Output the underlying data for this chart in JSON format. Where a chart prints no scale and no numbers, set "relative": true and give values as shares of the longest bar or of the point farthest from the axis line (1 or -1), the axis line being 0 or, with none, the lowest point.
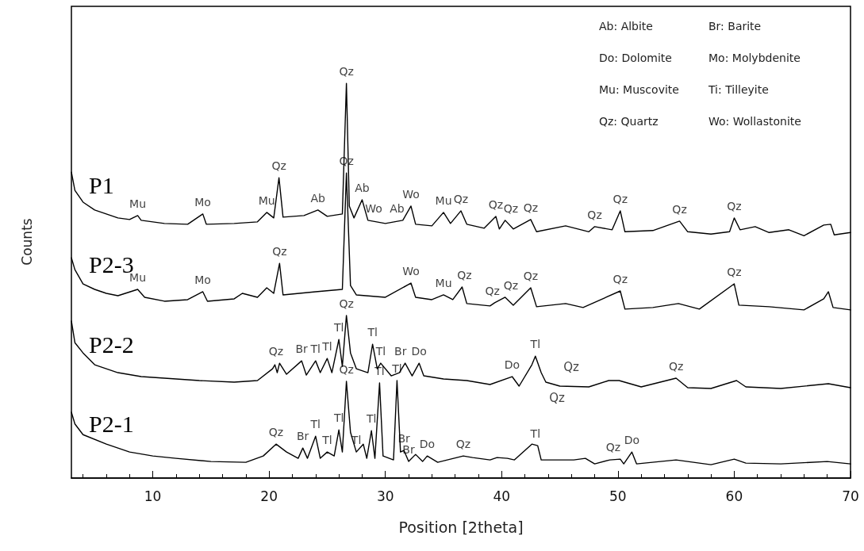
{
  "chart_data": {
    "type": "line",
    "relative": true,
    "xlabel": "Position [2theta]",
    "ylabel": "Counts",
    "xlim": [
      3,
      70
    ],
    "xticks": [
      10,
      20,
      30,
      40,
      50,
      60,
      70
    ],
    "marker": "none",
    "line_style": "solid",
    "series": [
      {
        "name": "P1",
        "color": "#000000",
        "x": [
          3.0,
          3.3,
          4,
          5,
          6,
          7,
          8,
          8.7,
          9,
          11,
          13,
          14.3,
          14.6,
          17,
          19,
          19.8,
          20.4,
          20.85,
          21.2,
          23,
          24.2,
          25,
          26.3,
          26.65,
          26.9,
          27.3,
          28.0,
          28.5,
          30,
          31.5,
          32.2,
          32.6,
          34,
          35.0,
          35.6,
          36.5,
          37,
          38.5,
          39.5,
          39.8,
          40.3,
          41,
          42.5,
          43,
          45.5,
          47.5,
          48.0,
          49.5,
          50.2,
          50.6,
          53,
          55.3,
          56,
          58,
          59.6,
          60.0,
          60.5,
          61.8,
          63,
          64.7,
          66,
          67.7,
          68.3,
          68.6,
          70
        ],
        "values": [
          0.775,
          0.729,
          0.699,
          0.679,
          0.669,
          0.659,
          0.655,
          0.665,
          0.653,
          0.645,
          0.643,
          0.669,
          0.643,
          0.645,
          0.649,
          0.673,
          0.659,
          0.761,
          0.661,
          0.665,
          0.679,
          0.663,
          0.669,
          1,
          0.689,
          0.659,
          0.705,
          0.653,
          0.645,
          0.653,
          0.689,
          0.643,
          0.639,
          0.673,
          0.645,
          0.677,
          0.643,
          0.633,
          0.663,
          0.631,
          0.653,
          0.631,
          0.655,
          0.624,
          0.639,
          0.624,
          0.637,
          0.629,
          0.677,
          0.624,
          0.627,
          0.651,
          0.624,
          0.618,
          0.624,
          0.659,
          0.629,
          0.637,
          0.622,
          0.629,
          0.614,
          0.641,
          0.643,
          0.616,
          0.622
        ]
      },
      {
        "name": "P2-3",
        "color": "#000000",
        "x": [
          3.0,
          3.3,
          4,
          5,
          6,
          7,
          8.7,
          9.3,
          11,
          13,
          14.3,
          14.7,
          17,
          17.7,
          19,
          19.8,
          20.4,
          20.9,
          21.2,
          24,
          26.3,
          26.65,
          27.0,
          27.5,
          30,
          32.2,
          32.6,
          34,
          35.0,
          35.8,
          36.6,
          37,
          39,
          39.4,
          40.3,
          41,
          42.5,
          43,
          45.5,
          47,
          50.2,
          50.6,
          53,
          55.2,
          57,
          60.0,
          60.4,
          63,
          66,
          67.7,
          68.1,
          68.5,
          70
        ],
        "values": [
          0.558,
          0.528,
          0.492,
          0.478,
          0.468,
          0.462,
          0.478,
          0.458,
          0.448,
          0.452,
          0.472,
          0.448,
          0.454,
          0.468,
          0.458,
          0.482,
          0.468,
          0.544,
          0.464,
          0.472,
          0.478,
          0.773,
          0.488,
          0.464,
          0.458,
          0.494,
          0.458,
          0.452,
          0.464,
          0.452,
          0.484,
          0.442,
          0.436,
          0.444,
          0.458,
          0.438,
          0.482,
          0.434,
          0.442,
          0.432,
          0.474,
          0.428,
          0.432,
          0.442,
          0.428,
          0.492,
          0.438,
          0.434,
          0.426,
          0.454,
          0.472,
          0.432,
          0.426
        ]
      },
      {
        "name": "P2-2",
        "color": "#000000",
        "x": [
          3.0,
          3.3,
          4,
          5,
          7,
          9,
          11,
          14,
          17,
          19,
          20.3,
          20.5,
          20.7,
          20.9,
          21.5,
          22.8,
          23.2,
          24.0,
          24.4,
          25.0,
          25.4,
          26.0,
          26.3,
          26.65,
          27.0,
          27.5,
          28.5,
          28.9,
          29.3,
          29.6,
          30.5,
          31.2,
          31.7,
          32.3,
          32.9,
          33.3,
          35,
          37,
          39,
          40.9,
          41.5,
          42.6,
          42.9,
          43.4,
          43.8,
          45,
          47.5,
          49.2,
          50.1,
          52,
          55.0,
          56,
          58,
          60.2,
          61,
          64,
          68.1,
          70
        ],
        "values": [
          0.398,
          0.343,
          0.317,
          0.287,
          0.267,
          0.257,
          0.253,
          0.247,
          0.243,
          0.247,
          0.277,
          0.287,
          0.267,
          0.291,
          0.263,
          0.297,
          0.261,
          0.297,
          0.267,
          0.303,
          0.267,
          0.351,
          0.283,
          0.412,
          0.317,
          0.277,
          0.267,
          0.339,
          0.277,
          0.291,
          0.259,
          0.267,
          0.291,
          0.259,
          0.291,
          0.259,
          0.251,
          0.247,
          0.237,
          0.257,
          0.233,
          0.287,
          0.309,
          0.267,
          0.243,
          0.233,
          0.231,
          0.247,
          0.247,
          0.231,
          0.253,
          0.229,
          0.227,
          0.247,
          0.231,
          0.227,
          0.239,
          0.229
        ]
      },
      {
        "name": "P2-1",
        "color": "#000000",
        "x": [
          3.0,
          3.3,
          4,
          6,
          8,
          10,
          12,
          15,
          18,
          19.5,
          20.6,
          21.5,
          22.5,
          22.9,
          23.3,
          24.0,
          24.4,
          25.0,
          25.6,
          26.0,
          26.3,
          26.65,
          27.0,
          27.5,
          28.1,
          28.4,
          28.8,
          29.1,
          29.5,
          29.8,
          30.7,
          31.0,
          31.3,
          31.6,
          32.0,
          32.6,
          33.2,
          33.6,
          34.5,
          36.7,
          37.5,
          39.0,
          39.6,
          40.5,
          41.1,
          42.6,
          43.1,
          43.4,
          45,
          46.2,
          47.2,
          48,
          49.3,
          50.2,
          50.5,
          51.2,
          51.6,
          55.0,
          58,
          60.0,
          61,
          64,
          68,
          70
        ],
        "values": [
          0.167,
          0.137,
          0.11,
          0.086,
          0.066,
          0.056,
          0.05,
          0.042,
          0.04,
          0.056,
          0.086,
          0.066,
          0.05,
          0.076,
          0.05,
          0.106,
          0.05,
          0.066,
          0.056,
          0.122,
          0.066,
          0.245,
          0.116,
          0.066,
          0.086,
          0.05,
          0.12,
          0.05,
          0.241,
          0.056,
          0.046,
          0.247,
          0.066,
          0.07,
          0.042,
          0.06,
          0.042,
          0.056,
          0.04,
          0.056,
          0.052,
          0.046,
          0.052,
          0.05,
          0.046,
          0.086,
          0.082,
          0.046,
          0.046,
          0.046,
          0.05,
          0.036,
          0.046,
          0.048,
          0.036,
          0.066,
          0.036,
          0.046,
          0.034,
          0.048,
          0.038,
          0.036,
          0.042,
          0.036
        ]
      }
    ],
    "annotations": [
      "Ab: Albite",
      "Br: Barite",
      "Do: Dolomite",
      "Mo: Molybdenite",
      "Mu: Muscovite",
      "Ti: Tilleyite",
      "Qz: Quartz",
      "Wo: Wollastonite",
      {
        "text": "Mu",
        "x": 8.7,
        "y": 0.665
      },
      {
        "text": "Mo",
        "x": 14.3,
        "y": 0.669
      },
      {
        "text": "Mu",
        "x": 19.8,
        "y": 0.673
      },
      {
        "text": "Qz",
        "x": 20.85,
        "y": 0.761
      },
      {
        "text": "Ab",
        "x": 24.2,
        "y": 0.679
      },
      {
        "text": "Qz",
        "x": 26.65,
        "y": 1
      },
      {
        "text": "Ab",
        "x": 28.0,
        "y": 0.705
      },
      {
        "text": "Wo",
        "x": 29.0,
        "y": 0.653
      },
      {
        "text": "Ab",
        "x": 31.0,
        "y": 0.653
      },
      {
        "text": "Wo",
        "x": 32.2,
        "y": 0.689
      },
      {
        "text": "Mu",
        "x": 35.0,
        "y": 0.673
      },
      {
        "text": "Qz",
        "x": 36.5,
        "y": 0.677
      },
      {
        "text": "Qz",
        "x": 39.5,
        "y": 0.663
      },
      {
        "text": "Qz",
        "x": 40.8,
        "y": 0.653
      },
      {
        "text": "Qz",
        "x": 42.5,
        "y": 0.655
      },
      {
        "text": "Qz",
        "x": 48.0,
        "y": 0.637
      },
      {
        "text": "Qz",
        "x": 50.2,
        "y": 0.677
      },
      {
        "text": "Qz",
        "x": 55.3,
        "y": 0.651
      },
      {
        "text": "Qz",
        "x": 60.0,
        "y": 0.659
      },
      {
        "text": "Mu",
        "x": 8.7,
        "y": 0.478
      },
      {
        "text": "Mo",
        "x": 14.3,
        "y": 0.472
      },
      {
        "text": "Qz",
        "x": 20.9,
        "y": 0.544
      },
      {
        "text": "Qz",
        "x": 26.65,
        "y": 0.773
      },
      {
        "text": "Wo",
        "x": 32.2,
        "y": 0.494
      },
      {
        "text": "Mu",
        "x": 35.0,
        "y": 0.464
      },
      {
        "text": "Qz",
        "x": 36.8,
        "y": 0.484
      },
      {
        "text": "Qz",
        "x": 39.2,
        "y": 0.444
      },
      {
        "text": "Qz",
        "x": 40.8,
        "y": 0.458
      },
      {
        "text": "Qz",
        "x": 42.5,
        "y": 0.482
      },
      {
        "text": "Qz",
        "x": 50.2,
        "y": 0.474
      },
      {
        "text": "Qz",
        "x": 60.0,
        "y": 0.492
      },
      {
        "text": "Qz",
        "x": 20.6,
        "y": 0.291
      },
      {
        "text": "Br",
        "x": 22.8,
        "y": 0.297
      },
      {
        "text": "Tl",
        "x": 24.0,
        "y": 0.297
      },
      {
        "text": "Tl",
        "x": 25.0,
        "y": 0.303
      },
      {
        "text": "Tl",
        "x": 26.0,
        "y": 0.351
      },
      {
        "text": "Qz",
        "x": 26.65,
        "y": 0.412
      },
      {
        "text": "Tl",
        "x": 28.9,
        "y": 0.339
      },
      {
        "text": "Tl",
        "x": 29.6,
        "y": 0.291
      },
      {
        "text": "Br",
        "x": 31.3,
        "y": 0.291
      },
      {
        "text": "Do",
        "x": 32.9,
        "y": 0.291
      },
      {
        "text": "Do",
        "x": 40.9,
        "y": 0.257
      },
      {
        "text": "Tl",
        "x": 42.9,
        "y": 0.309
      },
      {
        "text": "Qz",
        "x": 55.0,
        "y": 0.253
      },
      "Qz",
      "Qz",
      {
        "text": "Qz",
        "x": 20.6,
        "y": 0.086
      },
      {
        "text": "Br",
        "x": 22.9,
        "y": 0.076
      },
      {
        "text": "Tl",
        "x": 24.0,
        "y": 0.106
      },
      {
        "text": "Tl",
        "x": 25.0,
        "y": 0.066
      },
      {
        "text": "Tl",
        "x": 26.0,
        "y": 0.122
      },
      {
        "text": "Qz",
        "x": 26.65,
        "y": 0.245
      },
      {
        "text": "Tl",
        "x": 27.5,
        "y": 0.066
      },
      {
        "text": "Tl",
        "x": 28.8,
        "y": 0.12
      },
      {
        "text": "Tl",
        "x": 29.5,
        "y": 0.241
      },
      {
        "text": "Tl",
        "x": 31.0,
        "y": 0.247
      },
      {
        "text": "Br",
        "x": 31.6,
        "y": 0.07
      },
      {
        "text": "Br",
        "x": 32.0,
        "y": 0.042
      },
      {
        "text": "Do",
        "x": 33.6,
        "y": 0.056
      },
      {
        "text": "Qz",
        "x": 36.7,
        "y": 0.056
      },
      {
        "text": "Tl",
        "x": 42.9,
        "y": 0.082
      },
      {
        "text": "Qz",
        "x": 49.6,
        "y": 0.048
      },
      {
        "text": "Do",
        "x": 51.2,
        "y": 0.066
      }
    ]
  }
}
